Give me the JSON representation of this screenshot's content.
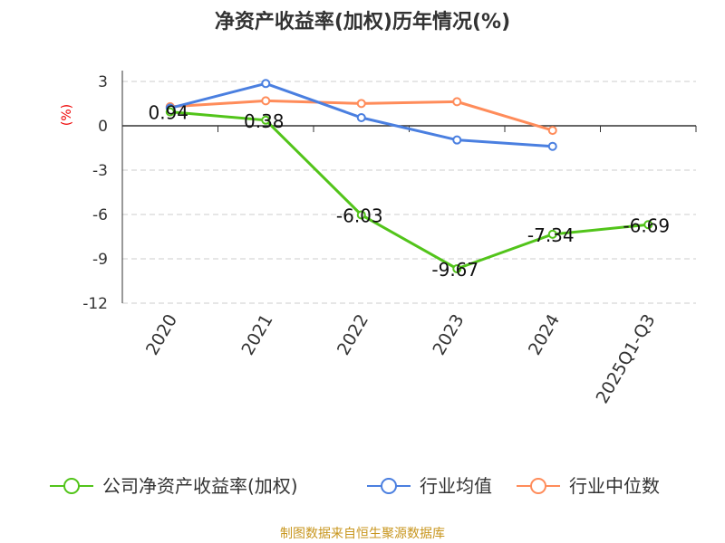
{
  "chart_data": {
    "type": "line",
    "title": "净资产收益率(加权)历年情况(%)",
    "ylabel": "(%)",
    "categories": [
      "2020",
      "2021",
      "2022",
      "2023",
      "2024",
      "2025Q1-Q3"
    ],
    "ylim": [
      -12,
      3
    ],
    "yticks": [
      3,
      0,
      -3,
      -6,
      -9,
      -12
    ],
    "grid": true,
    "legend_position": "bottom",
    "series": [
      {
        "name": "公司净资产收益率(加权)",
        "color": "#52c41a",
        "values": [
          0.94,
          0.38,
          -6.03,
          -9.67,
          -7.34,
          -6.69
        ],
        "labels": [
          "0.94",
          "0.38",
          "-6.03",
          "-9.67",
          "-7.34",
          "-6.69"
        ]
      },
      {
        "name": "行业均值",
        "color": "#4a7fe0",
        "values": [
          1.2,
          2.86,
          0.55,
          -0.96,
          -1.39,
          null
        ]
      },
      {
        "name": "行业中位数",
        "color": "#ff8c5a",
        "values": [
          1.29,
          1.69,
          1.51,
          1.63,
          -0.31,
          null
        ]
      }
    ]
  },
  "source": "制图数据来自恒生聚源数据库"
}
